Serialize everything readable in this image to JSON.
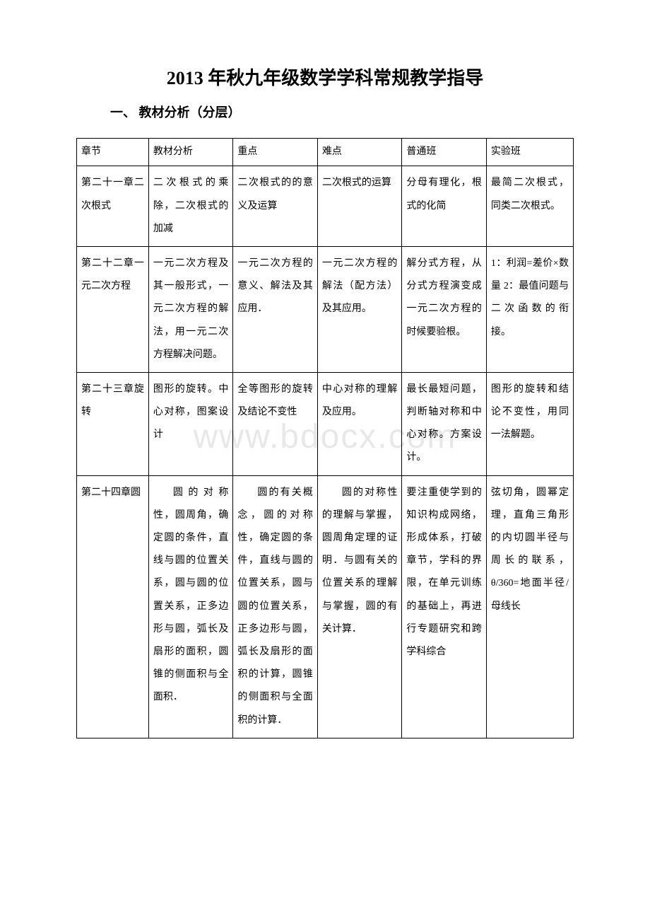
{
  "title": "2013 年秋九年级数学学科常规教学指导",
  "subtitle": "一、 教材分析（分层）",
  "watermark": "www.bdocx.com",
  "table": {
    "headers": [
      "章节",
      "教材分析",
      "重点",
      "难点",
      "普通班",
      "实验班"
    ],
    "rows": [
      {
        "chapter": "第二十一章二次根式",
        "analysis": "二次根式的乘除，二次根式的加减",
        "key": "二次根式的的意义及运算",
        "difficulty": "二次根式的运算",
        "normal": "分母有理化，根式的化简",
        "experimental": "最简二次根式，同类二次根式。"
      },
      {
        "chapter": "第二十二章一元二次方程",
        "analysis": "一元二次方程及其一般形式，一元二次方程的解法，用一元二次方程解决问题。",
        "key": "一元二次方程的意义、解法及其应用．",
        "difficulty": "一元二次方程的解法（配方法）及其应用。",
        "normal": "解分式方程，从分式方程演变成一元二次方程的时候要验根。",
        "experimental": "1：利润=差价×数量\n2：最值问题与二次函数的衔接。"
      },
      {
        "chapter": "第二十三章旋转",
        "analysis": "图形的旋转。中心对称，图案设计",
        "key": "全等图形的旋转及结论不变性",
        "difficulty": "中心对称的理解及应用。",
        "normal": "最长最短问题，判断轴对称和中心对称。方案设计。",
        "experimental": "图形的旋转和结论不变性，用同一法解题。"
      },
      {
        "chapter": "第二十四章圆",
        "analysis": "圆的对称性，圆周角，确定圆的条件，直线与圆的位置关系，圆与圆的位置关系，正多边形与圆，弧长及扇形的面积，圆锥的侧面积与全面积．",
        "key": "圆的有关概念，圆的对称性，确定圆的条件，直线与圆的位置关系，圆与圆的位置关系，正多边形与圆，弧长及扇形的面积的计算，圆锥的侧面积与全面积的计算．",
        "difficulty": "圆的对称性的理解与掌握，圆周角定理的证明．与圆有关的位置关系的理解与掌握，圆的有关计算．",
        "normal": "要注重使学到的知识构成网络，形成体系，打破章节，学科的界限，在单元训练的基础上，再进行专题研究和跨学科综合",
        "experimental": "弦切角，圆幂定理，直角三角形的内切圆半径与周长的联系，θ/360=地面半径/母线长"
      }
    ]
  }
}
